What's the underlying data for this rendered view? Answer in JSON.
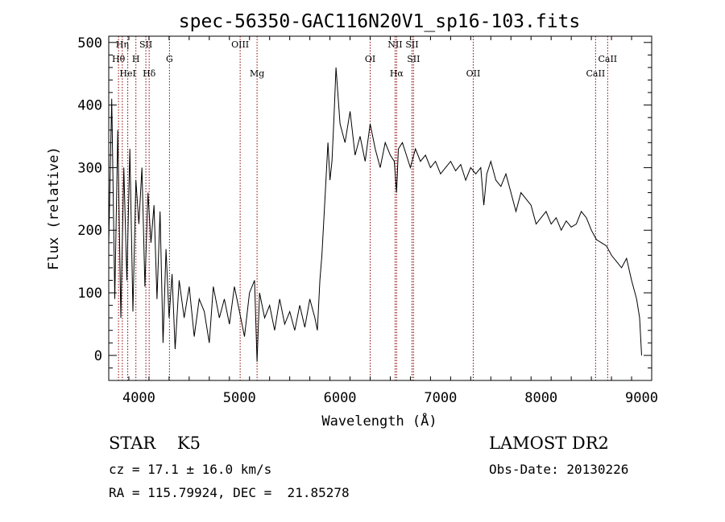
{
  "chart_data": {
    "type": "line",
    "title": "spec-56350-GAC116N20V1_sp16-103.fits",
    "xlabel": "Wavelength (Å)",
    "ylabel": "Flux (relative)",
    "xlim": [
      3700,
      9100
    ],
    "ylim": [
      -40,
      510
    ],
    "xticks": [
      4000,
      5000,
      6000,
      7000,
      8000,
      9000
    ],
    "yticks": [
      0,
      100,
      200,
      300,
      400,
      500
    ],
    "grid": false,
    "series": [
      {
        "line_color": "#000000",
        "x": [
          3700,
          3730,
          3760,
          3790,
          3820,
          3850,
          3880,
          3910,
          3940,
          3970,
          4000,
          4030,
          4060,
          4090,
          4120,
          4150,
          4180,
          4210,
          4240,
          4270,
          4300,
          4330,
          4360,
          4400,
          4450,
          4500,
          4550,
          4600,
          4650,
          4700,
          4740,
          4800,
          4850,
          4900,
          4950,
          5000,
          5050,
          5100,
          5150,
          5175,
          5200,
          5250,
          5300,
          5350,
          5400,
          5450,
          5500,
          5550,
          5600,
          5650,
          5700,
          5750,
          5775,
          5800,
          5820,
          5850,
          5880,
          5900,
          5920,
          5940,
          5960,
          6000,
          6050,
          6100,
          6150,
          6200,
          6250,
          6300,
          6350,
          6400,
          6450,
          6500,
          6540,
          6563,
          6580,
          6620,
          6660,
          6700,
          6750,
          6800,
          6850,
          6900,
          6950,
          7000,
          7050,
          7100,
          7150,
          7200,
          7250,
          7300,
          7350,
          7400,
          7430,
          7460,
          7500,
          7550,
          7600,
          7650,
          7700,
          7750,
          7800,
          7850,
          7900,
          7950,
          8000,
          8050,
          8100,
          8150,
          8200,
          8250,
          8300,
          8350,
          8400,
          8450,
          8500,
          8550,
          8600,
          8650,
          8700,
          8750,
          8800,
          8850,
          8900,
          8950,
          8980,
          9000
        ],
        "y": [
          180,
          410,
          90,
          360,
          60,
          300,
          120,
          330,
          70,
          280,
          210,
          300,
          110,
          260,
          180,
          240,
          90,
          230,
          20,
          170,
          60,
          130,
          10,
          120,
          60,
          110,
          30,
          90,
          70,
          20,
          110,
          60,
          90,
          50,
          110,
          70,
          30,
          100,
          120,
          -10,
          100,
          60,
          80,
          40,
          90,
          50,
          70,
          40,
          80,
          45,
          90,
          60,
          40,
          120,
          160,
          250,
          340,
          280,
          310,
          380,
          460,
          370,
          340,
          390,
          320,
          350,
          310,
          370,
          330,
          300,
          340,
          320,
          310,
          260,
          330,
          340,
          320,
          300,
          330,
          310,
          320,
          300,
          310,
          290,
          300,
          310,
          295,
          305,
          280,
          300,
          290,
          300,
          240,
          290,
          310,
          280,
          270,
          290,
          260,
          230,
          260,
          250,
          240,
          210,
          220,
          230,
          210,
          220,
          200,
          215,
          205,
          210,
          230,
          220,
          200,
          185,
          180,
          175,
          160,
          150,
          140,
          155,
          120,
          90,
          60,
          0
        ]
      }
    ],
    "emission_lines": [
      {
        "label": "Hη",
        "x": 3835,
        "row": 1
      },
      {
        "label": "Hθ",
        "x": 3797,
        "row": 2
      },
      {
        "label": "HeI",
        "x": 3889,
        "row": 3
      },
      {
        "label": "H",
        "x": 3970,
        "row": 2
      },
      {
        "label": "SII",
        "x": 4069,
        "row": 1
      },
      {
        "label": "Hδ",
        "x": 4102,
        "row": 3
      },
      {
        "label": "G",
        "x": 4304,
        "row": 2
      },
      {
        "label": "OIII",
        "x": 5007,
        "row": 1
      },
      {
        "label": "Mg",
        "x": 5175,
        "row": 3
      },
      {
        "label": "OI",
        "x": 6300,
        "row": 2
      },
      {
        "label": "NII",
        "x": 6548,
        "row": 1
      },
      {
        "label": "Hα",
        "x": 6563,
        "row": 3
      },
      {
        "label": "SII",
        "x": 6716,
        "row": 1
      },
      {
        "label": "SII",
        "x": 6731,
        "row": 2
      },
      {
        "label": "OII",
        "x": 7325,
        "row": 3
      },
      {
        "label": "CaII",
        "x": 8542,
        "row": 3
      },
      {
        "label": "CaII",
        "x": 8662,
        "row": 2
      }
    ],
    "line_marker_color": "#8b0000"
  },
  "info": {
    "classification": "STAR    K5",
    "cz": "cz = 17.1 ± 16.0 km/s",
    "coords": "RA = 115.79924, DEC =  21.85278",
    "survey": "LAMOST DR2",
    "obs_date": "Obs-Date: 20130226"
  }
}
